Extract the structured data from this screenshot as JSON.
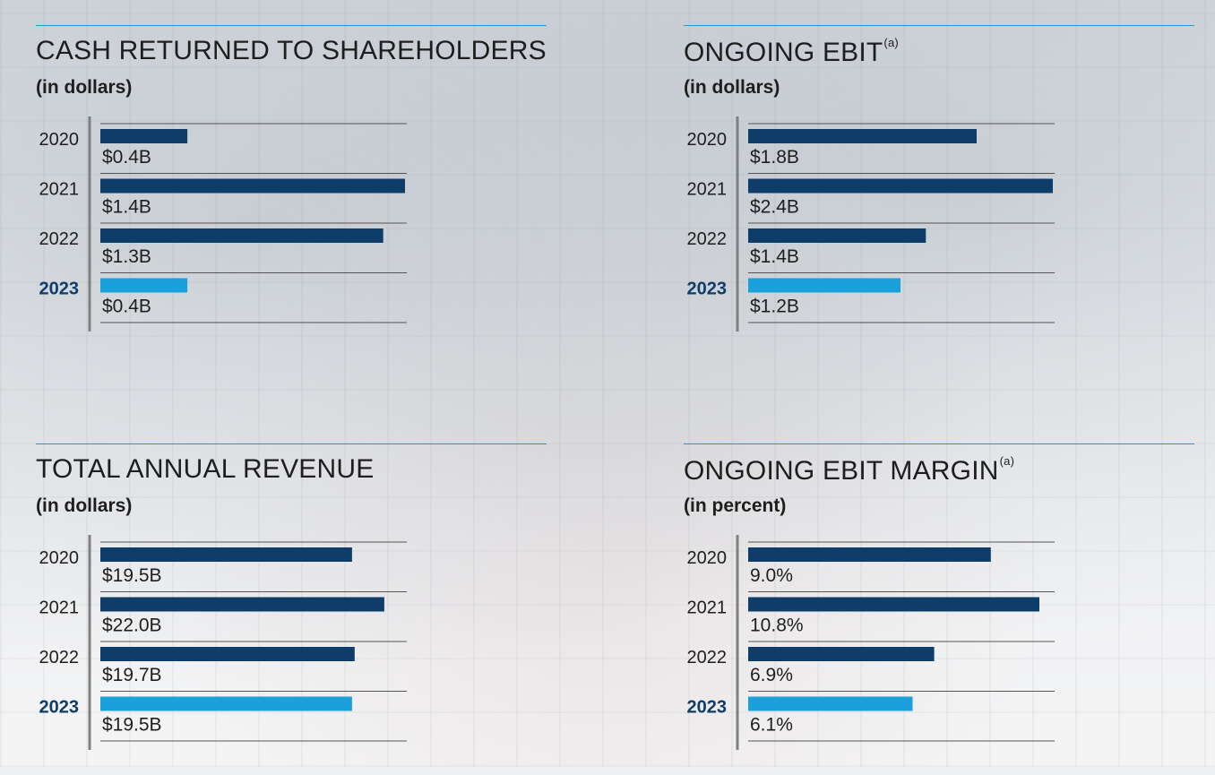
{
  "colors": {
    "past": "#0f3d6a",
    "current": "#1aa0da",
    "rule": "#1b9bd7",
    "axis": "#808080",
    "gridline": "#555555"
  },
  "chart_data": [
    {
      "type": "bar",
      "orientation": "horizontal",
      "title": "CASH RETURNED TO SHAREHOLDERS",
      "title_note": "",
      "unit_label": "(in dollars)",
      "categories": [
        "2020",
        "2021",
        "2022",
        "2023"
      ],
      "highlight_category": "2023",
      "values": [
        0.4,
        1.4,
        1.3,
        0.4
      ],
      "value_labels": [
        "$0.4B",
        "$1.4B",
        "$1.3B",
        "$0.4B"
      ],
      "xlim": [
        0,
        1.4
      ]
    },
    {
      "type": "bar",
      "orientation": "horizontal",
      "title": "ONGOING EBIT",
      "title_note": "(a)",
      "unit_label": "(in dollars)",
      "categories": [
        "2020",
        "2021",
        "2022",
        "2023"
      ],
      "highlight_category": "2023",
      "values": [
        1.8,
        2.4,
        1.4,
        1.2
      ],
      "value_labels": [
        "$1.8B",
        "$2.4B",
        "$1.4B",
        "$1.2B"
      ],
      "xlim": [
        0,
        2.4
      ]
    },
    {
      "type": "bar",
      "orientation": "horizontal",
      "title": "TOTAL ANNUAL REVENUE",
      "title_note": "",
      "unit_label": "(in dollars)",
      "categories": [
        "2020",
        "2021",
        "2022",
        "2023"
      ],
      "highlight_category": "2023",
      "values": [
        19.5,
        22.0,
        19.7,
        19.5
      ],
      "value_labels": [
        "$19.5B",
        "$22.0B",
        "$19.7B",
        "$19.5B"
      ],
      "xlim": [
        0,
        23.6
      ]
    },
    {
      "type": "bar",
      "orientation": "horizontal",
      "title": "ONGOING EBIT MARGIN",
      "title_note": "(a)",
      "unit_label": "(in percent)",
      "categories": [
        "2020",
        "2021",
        "2022",
        "2023"
      ],
      "highlight_category": "2023",
      "values": [
        9.0,
        10.8,
        6.9,
        6.1
      ],
      "value_labels": [
        "9.0%",
        "10.8%",
        "6.9%",
        "6.1%"
      ],
      "xlim": [
        0,
        11.3
      ]
    }
  ]
}
